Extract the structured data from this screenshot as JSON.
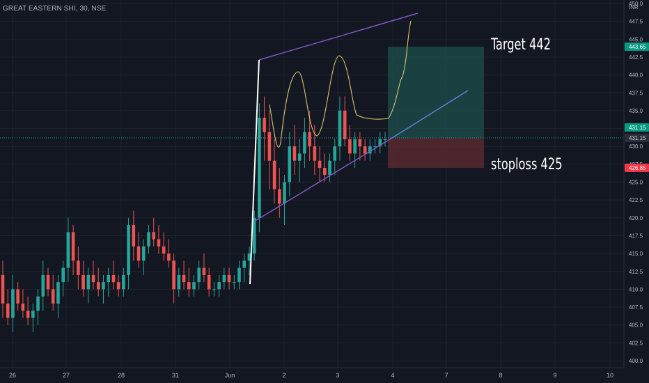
{
  "symbol_title": "GREAT EASTERN SHI, 30, NSE",
  "annotations": {
    "target": "Target 442",
    "stoploss": "stoploss 425"
  },
  "price_labels": {
    "target": "443.65",
    "current_1": "431.15",
    "current_2": "431.15",
    "stop": "426.85",
    "currency": "INR"
  },
  "colors": {
    "background": "#131722",
    "up": "#26a69a",
    "down": "#ef5350",
    "channel": "#7e57c2",
    "trendline": "#5b7fd6",
    "wave": "#d6c66a",
    "target_zone": "#1f4f4c",
    "stop_zone": "#5b2a30",
    "target_badge": "#089981",
    "stop_badge": "#f23645",
    "current_badge": "#089981"
  },
  "chart_data": {
    "type": "candlestick",
    "title": "GREAT EASTERN SHI, 30, NSE",
    "ylim": [
      400,
      450
    ],
    "y_ticks": [
      400,
      402.5,
      405,
      407.5,
      410,
      412.5,
      415,
      417.5,
      420,
      422.5,
      425,
      427.5,
      430,
      432.5,
      435,
      437.5,
      440,
      442.5,
      445,
      447.5,
      450
    ],
    "x_ticks": [
      "26",
      "27",
      "28",
      "31",
      "Jun",
      "2",
      "3",
      "4",
      "7",
      "8",
      "9",
      "10"
    ],
    "grid": true,
    "annotations": [
      "Target 442",
      "stoploss 425"
    ],
    "target_price": 443.65,
    "current_price": 431.15,
    "stop_price": 426.85,
    "candles": [
      [
        412,
        414,
        406,
        408
      ],
      [
        408,
        410,
        405,
        406
      ],
      [
        406,
        412,
        404,
        410
      ],
      [
        410,
        411,
        407,
        408
      ],
      [
        408,
        410,
        406,
        407
      ],
      [
        407,
        409,
        405,
        406
      ],
      [
        406,
        408,
        404,
        407
      ],
      [
        407,
        410,
        405,
        409
      ],
      [
        409,
        414,
        407,
        412
      ],
      [
        412,
        413,
        409,
        410
      ],
      [
        410,
        412,
        407,
        408
      ],
      [
        408,
        412,
        406,
        411
      ],
      [
        411,
        414,
        409,
        413
      ],
      [
        413,
        420,
        411,
        418
      ],
      [
        418,
        419,
        412,
        414
      ],
      [
        414,
        416,
        410,
        412
      ],
      [
        412,
        414,
        409,
        410
      ],
      [
        410,
        413,
        408,
        412
      ],
      [
        412,
        414,
        410,
        411
      ],
      [
        411,
        413,
        409,
        410
      ],
      [
        410,
        412,
        408,
        411
      ],
      [
        411,
        413,
        409,
        412
      ],
      [
        412,
        414,
        410,
        411
      ],
      [
        411,
        412,
        409,
        410
      ],
      [
        410,
        413,
        409,
        412
      ],
      [
        412,
        420,
        410,
        419
      ],
      [
        419,
        421,
        414,
        416
      ],
      [
        416,
        418,
        413,
        414
      ],
      [
        414,
        417,
        412,
        416
      ],
      [
        416,
        419,
        415,
        418
      ],
      [
        418,
        420,
        416,
        417
      ],
      [
        417,
        419,
        415,
        416
      ],
      [
        416,
        418,
        414,
        415
      ],
      [
        415,
        417,
        413,
        414
      ],
      [
        414,
        415,
        408,
        410
      ],
      [
        410,
        413,
        409,
        412
      ],
      [
        412,
        414,
        410,
        411
      ],
      [
        411,
        413,
        409,
        410
      ],
      [
        410,
        412,
        409,
        411
      ],
      [
        411,
        414,
        410,
        413
      ],
      [
        413,
        415,
        411,
        412
      ],
      [
        412,
        413,
        409,
        410
      ],
      [
        410,
        411,
        409,
        410
      ],
      [
        410,
        412,
        409,
        411
      ],
      [
        411,
        413,
        410,
        412
      ],
      [
        412,
        413,
        410,
        411
      ],
      [
        411,
        412,
        410,
        411
      ],
      [
        411,
        414,
        410,
        413
      ],
      [
        413,
        415,
        411,
        414
      ],
      [
        414,
        416,
        412,
        415
      ],
      [
        415,
        421,
        414,
        420
      ],
      [
        420,
        436,
        418,
        434
      ],
      [
        434,
        437,
        428,
        432
      ],
      [
        432,
        435,
        424,
        428
      ],
      [
        428,
        431,
        422,
        424
      ],
      [
        424,
        427,
        420,
        422
      ],
      [
        422,
        426,
        419,
        425
      ],
      [
        425,
        432,
        423,
        430
      ],
      [
        430,
        433,
        426,
        428
      ],
      [
        428,
        431,
        425,
        429
      ],
      [
        429,
        434,
        427,
        432
      ],
      [
        432,
        435,
        428,
        430
      ],
      [
        430,
        433,
        426,
        428
      ],
      [
        428,
        430,
        425,
        427
      ],
      [
        427,
        429,
        425,
        426
      ],
      [
        426,
        429,
        425,
        428
      ],
      [
        428,
        431,
        426,
        430
      ],
      [
        430,
        437,
        428,
        435
      ],
      [
        435,
        437,
        430,
        431
      ],
      [
        431,
        433,
        428,
        429
      ],
      [
        429,
        432,
        427,
        431
      ],
      [
        431,
        432,
        428,
        430
      ],
      [
        430,
        431,
        428,
        429
      ],
      [
        429,
        431,
        428,
        430
      ],
      [
        430,
        431,
        429,
        430
      ],
      [
        430,
        432,
        429,
        431
      ],
      [
        431,
        432,
        430,
        431
      ]
    ]
  }
}
